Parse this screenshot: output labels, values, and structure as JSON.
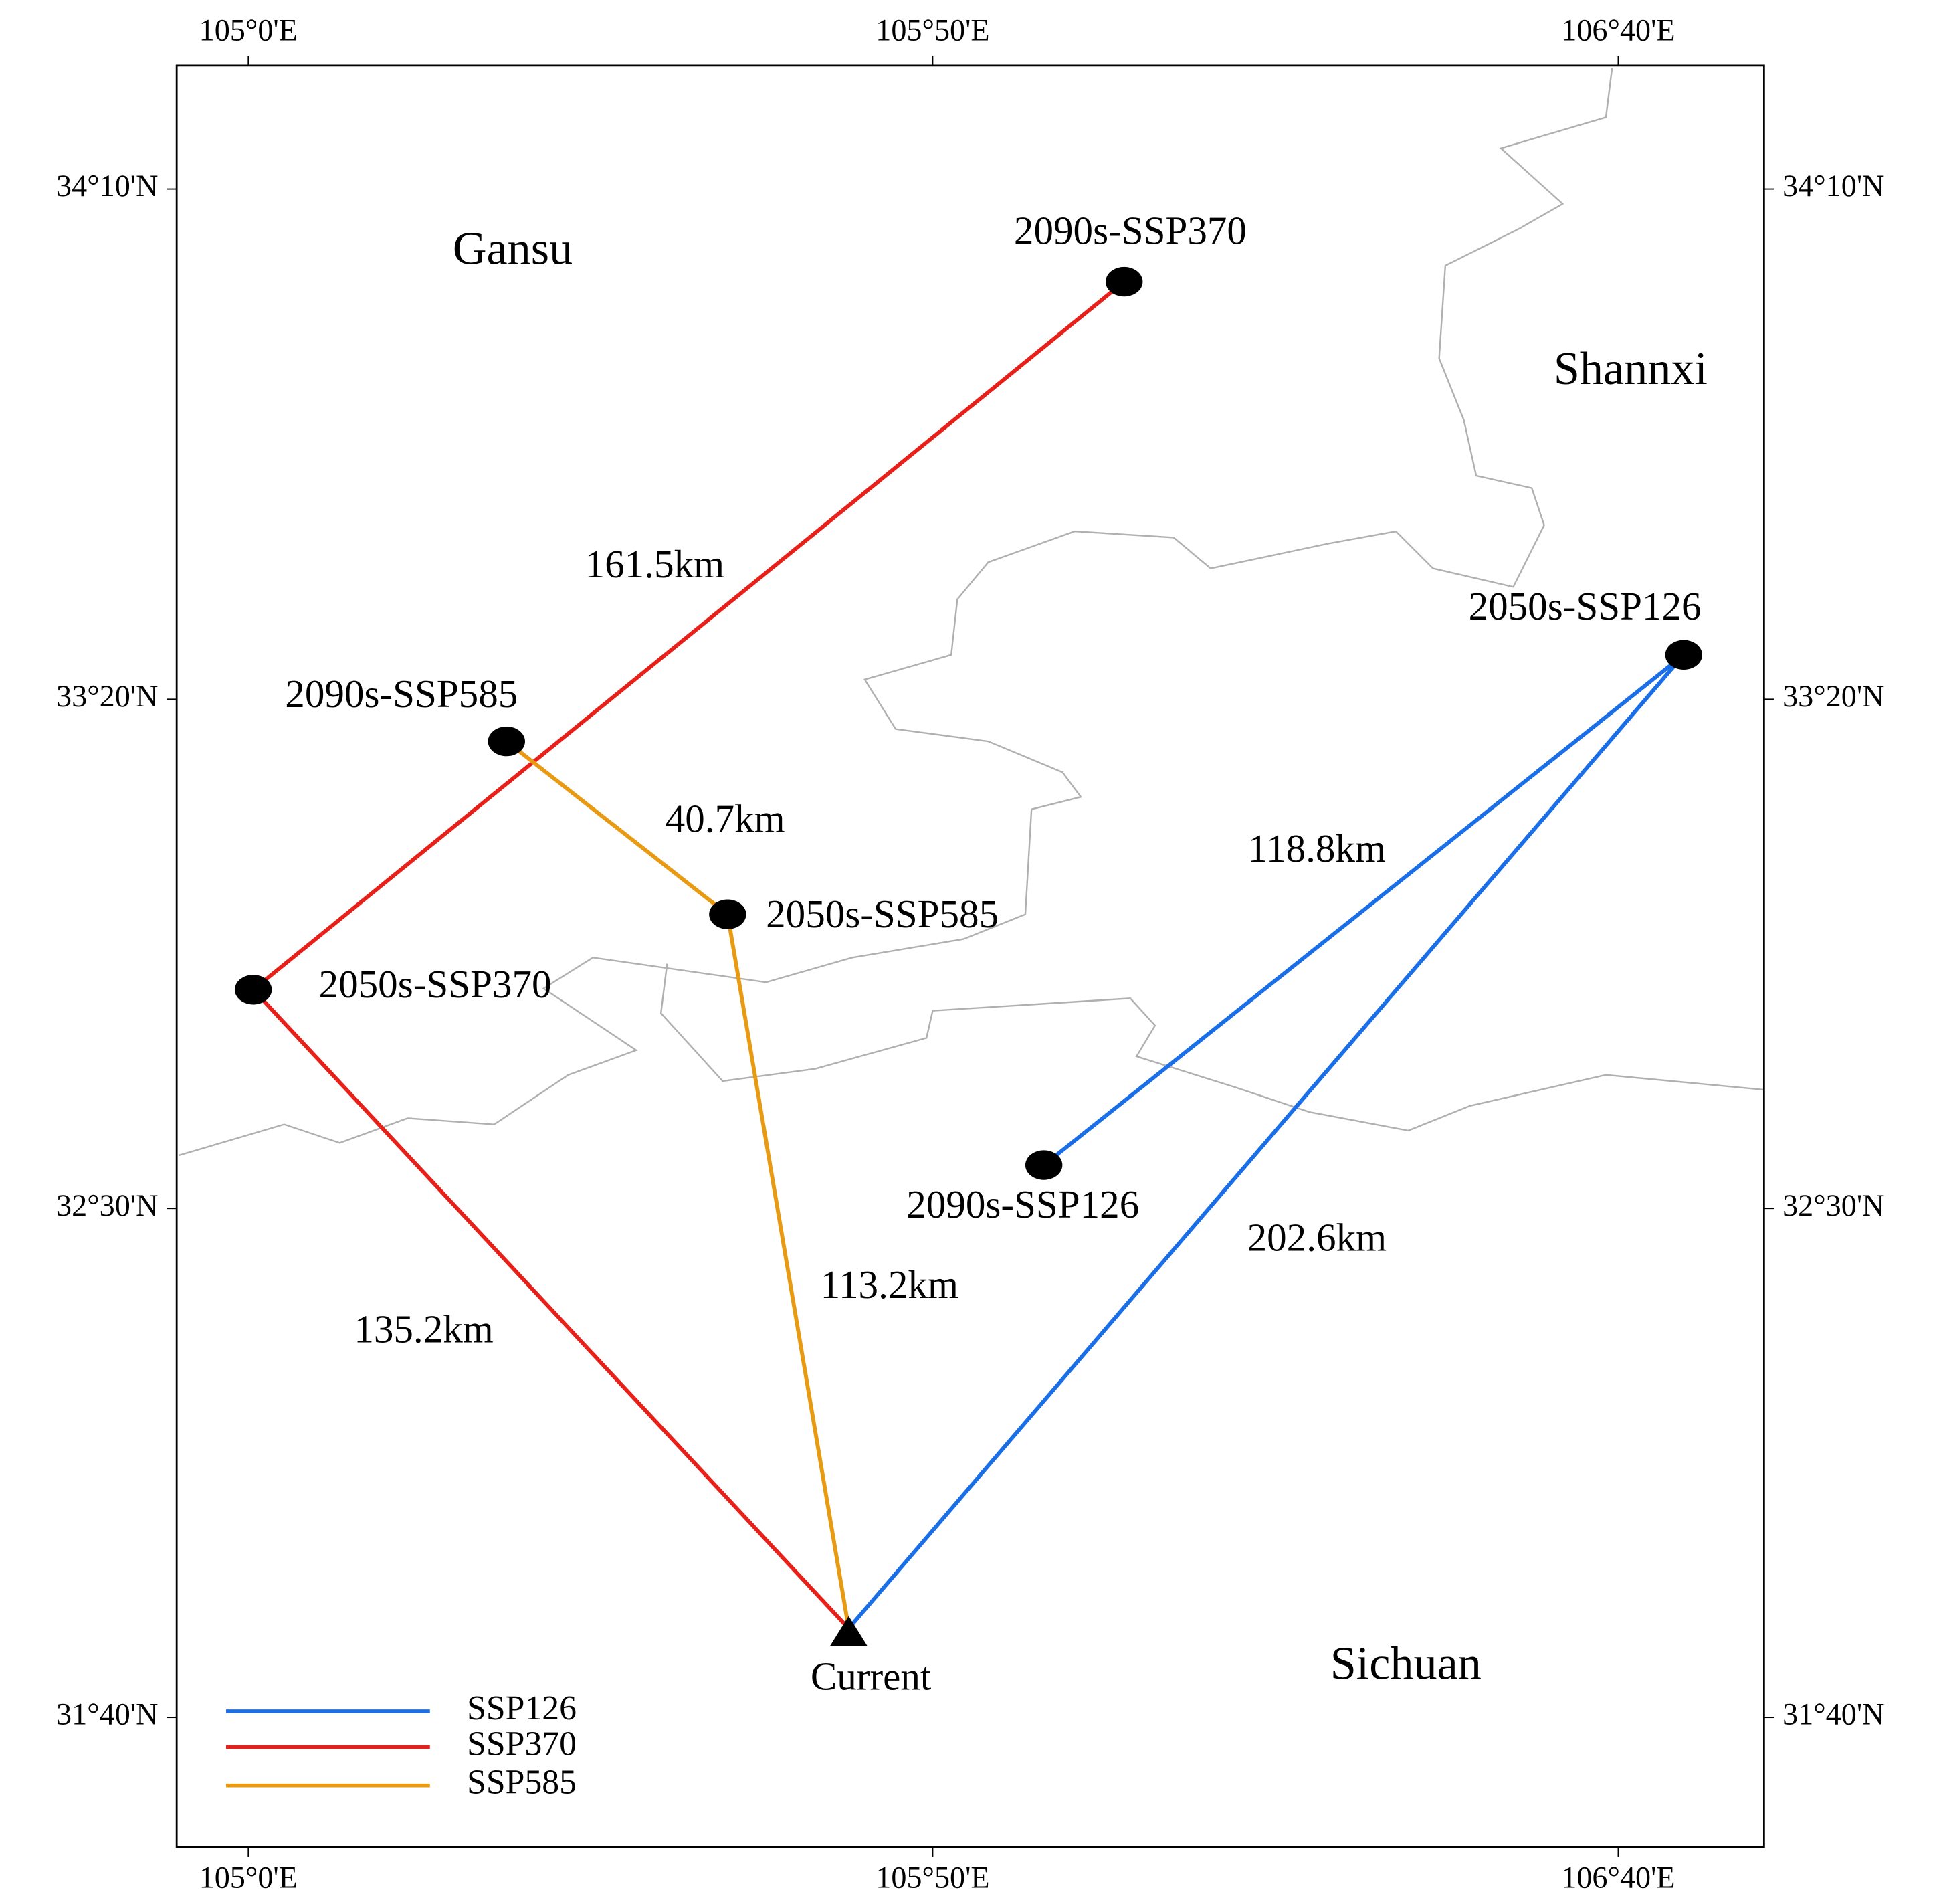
{
  "axes": {
    "top": [
      "105°0'E",
      "105°50'E",
      "106°40'E"
    ],
    "bottom": [
      "105°0'E",
      "105°50'E",
      "106°40'E"
    ],
    "left": [
      "34°10'N",
      "33°20'N",
      "32°30'N",
      "31°40'N"
    ],
    "right": [
      "34°10'N",
      "33°20'N",
      "32°30'N",
      "31°40'N"
    ]
  },
  "regions": [
    "Gansu",
    "Shannxi",
    "Sichuan"
  ],
  "current": "Current",
  "routes": [
    {
      "name": "SSP126",
      "color": "#1a6fe8",
      "sites": [
        "2050s-SSP126",
        "2090s-SSP126"
      ],
      "distances": [
        "202.6km",
        "118.8km"
      ]
    },
    {
      "name": "SSP370",
      "color": "#e8201a",
      "sites": [
        "2050s-SSP370",
        "2090s-SSP370"
      ],
      "distances": [
        "135.2km",
        "161.5km"
      ]
    },
    {
      "name": "SSP585",
      "color": "#e89b12",
      "sites": [
        "2050s-SSP585",
        "2090s-SSP585"
      ],
      "distances": [
        "113.2km",
        "40.7km"
      ]
    }
  ]
}
